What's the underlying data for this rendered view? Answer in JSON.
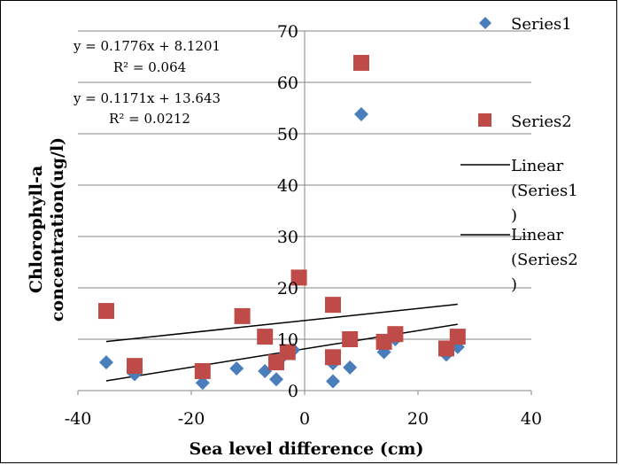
{
  "chart_data": {
    "type": "scatter",
    "xlabel": "Sea level difference (cm)",
    "ylabel_line1": "Chlorophyll-a",
    "ylabel_line2": "concentration(ug/l)",
    "xlim": [
      -40,
      40
    ],
    "ylim": [
      0,
      70
    ],
    "x_ticks": [
      "-40",
      "-20",
      "0",
      "20",
      "40"
    ],
    "y_ticks": [
      "0",
      "10",
      "20",
      "30",
      "40",
      "50",
      "60",
      "70"
    ],
    "grid": "horizontal",
    "legend_position": "right",
    "series": [
      {
        "name": "Series1",
        "marker": "diamond",
        "color": "#4A7EBB",
        "points": [
          [
            -35,
            5.5
          ],
          [
            -30,
            3.2
          ],
          [
            -18,
            1.5
          ],
          [
            -12,
            4.3
          ],
          [
            -7,
            3.8
          ],
          [
            -5,
            2.2
          ],
          [
            -4,
            6.5
          ],
          [
            -2,
            7.9
          ],
          [
            5,
            5.3
          ],
          [
            5,
            1.8
          ],
          [
            8,
            4.5
          ],
          [
            14,
            7.5
          ],
          [
            16,
            10
          ],
          [
            25,
            7
          ],
          [
            27,
            8.5
          ],
          [
            10,
            53.8
          ]
        ]
      },
      {
        "name": "Series2",
        "marker": "square",
        "color": "#BE4B48",
        "points": [
          [
            -35,
            15.5
          ],
          [
            -30,
            4.8
          ],
          [
            -18,
            3.8
          ],
          [
            -11,
            14.5
          ],
          [
            -7,
            10.5
          ],
          [
            -5,
            5.5
          ],
          [
            -3,
            7.5
          ],
          [
            -1,
            22
          ],
          [
            5,
            16.7
          ],
          [
            5,
            6.5
          ],
          [
            8,
            10
          ],
          [
            14,
            9.5
          ],
          [
            16,
            11
          ],
          [
            25,
            8.2
          ],
          [
            27,
            10.5
          ],
          [
            10,
            63.8
          ]
        ]
      }
    ],
    "trendlines": [
      {
        "name": "Linear (Series1)",
        "series": "Series1",
        "slope": 0.1776,
        "intercept": 8.1201,
        "x_range": [
          -35,
          27
        ],
        "color": "#000000"
      },
      {
        "name": "Linear (Series2)",
        "series": "Series2",
        "slope": 0.1171,
        "intercept": 13.643,
        "x_range": [
          -35,
          27
        ],
        "color": "#000000"
      }
    ],
    "annotations": [
      {
        "text": "y = 0.1776x + 8.1201"
      },
      {
        "text": "R² = 0.064"
      },
      {
        "text": "y = 0.1171x + 13.643"
      },
      {
        "text": "R² = 0.0212"
      }
    ],
    "legend": {
      "series1": "Series1",
      "series2": "Series2",
      "linear1_a": "Linear",
      "linear1_b": "(Series1",
      "linear1_c": ")",
      "linear2_a": "Linear",
      "linear2_b": "(Series2",
      "linear2_c": ")"
    }
  }
}
